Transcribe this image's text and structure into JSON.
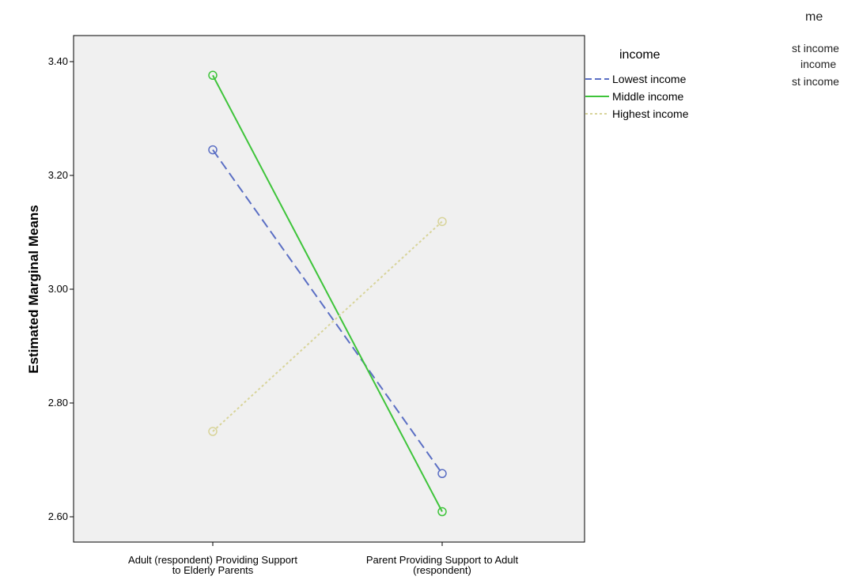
{
  "chart_data": {
    "type": "line",
    "title": "",
    "xlabel": "",
    "ylabel": "Estimated Marginal Means",
    "ylim": [
      2.56,
      3.45
    ],
    "yticks": [
      2.6,
      2.8,
      3.0,
      3.2,
      3.4
    ],
    "ytick_labels": [
      "2.60",
      "2.80",
      "3.00",
      "3.20",
      "3.40"
    ],
    "grid": false,
    "categories": [
      [
        "Adult (respondent) Providing Support",
        "to Elderly Parents"
      ],
      [
        "Parent Providing Support to Adult",
        "(respondent)"
      ]
    ],
    "legend": {
      "title": "income",
      "placement": "right"
    },
    "series": [
      {
        "name": "Lowest income",
        "values": [
          3.245,
          2.676
        ],
        "color": "#5b6fc4",
        "dash": "12,6"
      },
      {
        "name": "Middle income",
        "values": [
          3.376,
          2.609
        ],
        "color": "#3ec43a",
        "dash": ""
      },
      {
        "name": "Highest income",
        "values": [
          2.75,
          3.119
        ],
        "color": "#d8d49a",
        "dash": "3,3"
      }
    ],
    "plot_background": "#f0f0f0",
    "marker": "circle"
  },
  "ghost_legend": {
    "title_fragment": "me",
    "items": [
      "st income",
      "income",
      "st income"
    ]
  }
}
